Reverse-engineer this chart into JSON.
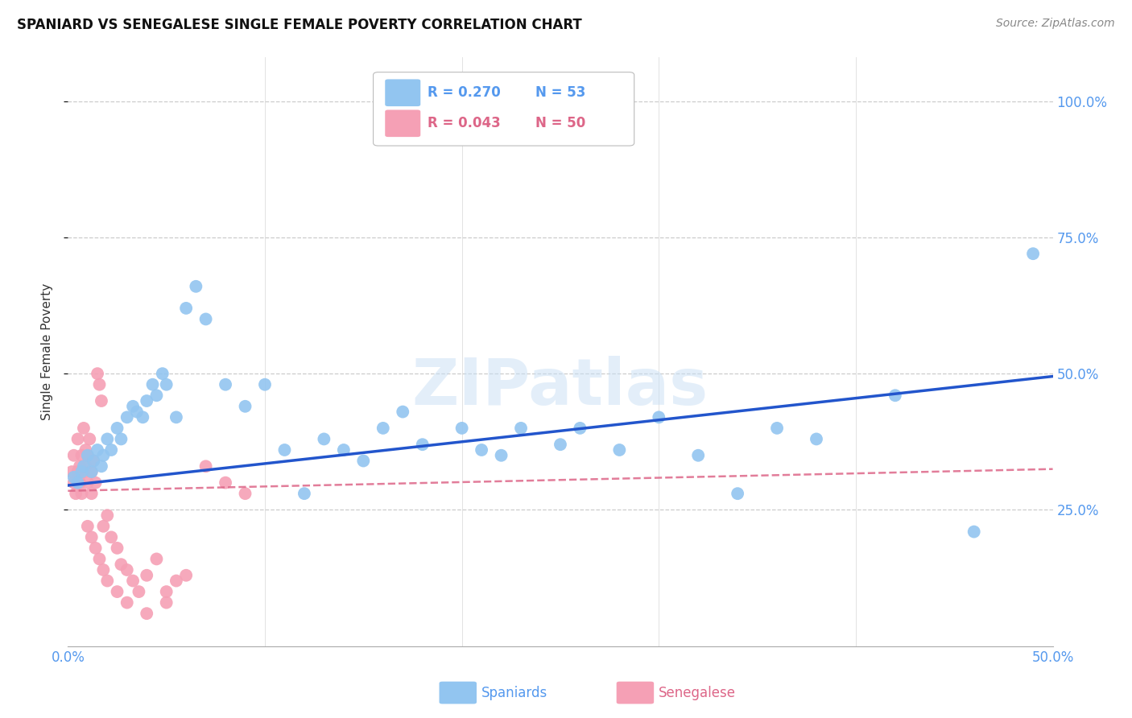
{
  "title": "SPANIARD VS SENEGALESE SINGLE FEMALE POVERTY CORRELATION CHART",
  "source": "Source: ZipAtlas.com",
  "ylabel": "Single Female Poverty",
  "ytick_values": [
    0.25,
    0.5,
    0.75,
    1.0
  ],
  "ytick_labels": [
    "25.0%",
    "50.0%",
    "75.0%",
    "100.0%"
  ],
  "xlim": [
    0.0,
    0.5
  ],
  "ylim": [
    0.0,
    1.08
  ],
  "legend_r_spaniards": "R = 0.270",
  "legend_n_spaniards": "N = 53",
  "legend_r_senegalese": "R = 0.043",
  "legend_n_senegalese": "N = 50",
  "watermark": "ZIPatlas",
  "spaniards_color": "#92c5f0",
  "senegalese_color": "#f5a0b5",
  "spaniards_line_color": "#2255cc",
  "senegalese_line_color": "#dd6688",
  "spaniards_x": [
    0.003,
    0.005,
    0.007,
    0.008,
    0.01,
    0.012,
    0.013,
    0.015,
    0.017,
    0.018,
    0.02,
    0.022,
    0.025,
    0.027,
    0.03,
    0.033,
    0.035,
    0.038,
    0.04,
    0.043,
    0.045,
    0.048,
    0.05,
    0.055,
    0.06,
    0.065,
    0.07,
    0.08,
    0.09,
    0.1,
    0.11,
    0.12,
    0.13,
    0.14,
    0.15,
    0.16,
    0.17,
    0.18,
    0.2,
    0.21,
    0.22,
    0.23,
    0.25,
    0.26,
    0.28,
    0.3,
    0.32,
    0.34,
    0.36,
    0.38,
    0.42,
    0.46,
    0.49
  ],
  "spaniards_y": [
    0.31,
    0.3,
    0.32,
    0.33,
    0.35,
    0.32,
    0.34,
    0.36,
    0.33,
    0.35,
    0.38,
    0.36,
    0.4,
    0.38,
    0.42,
    0.44,
    0.43,
    0.42,
    0.45,
    0.48,
    0.46,
    0.5,
    0.48,
    0.42,
    0.62,
    0.66,
    0.6,
    0.48,
    0.44,
    0.48,
    0.36,
    0.28,
    0.38,
    0.36,
    0.34,
    0.4,
    0.43,
    0.37,
    0.4,
    0.36,
    0.35,
    0.4,
    0.37,
    0.4,
    0.36,
    0.42,
    0.35,
    0.28,
    0.4,
    0.38,
    0.46,
    0.21,
    0.72
  ],
  "senegalese_x": [
    0.002,
    0.003,
    0.003,
    0.004,
    0.005,
    0.005,
    0.006,
    0.006,
    0.007,
    0.007,
    0.008,
    0.008,
    0.009,
    0.009,
    0.01,
    0.01,
    0.011,
    0.012,
    0.012,
    0.013,
    0.014,
    0.015,
    0.016,
    0.017,
    0.018,
    0.02,
    0.022,
    0.025,
    0.027,
    0.03,
    0.033,
    0.036,
    0.04,
    0.045,
    0.05,
    0.055,
    0.06,
    0.07,
    0.08,
    0.09,
    0.01,
    0.012,
    0.014,
    0.016,
    0.018,
    0.02,
    0.025,
    0.03,
    0.04,
    0.05
  ],
  "senegalese_y": [
    0.32,
    0.35,
    0.3,
    0.28,
    0.32,
    0.38,
    0.33,
    0.3,
    0.35,
    0.28,
    0.32,
    0.4,
    0.33,
    0.36,
    0.3,
    0.35,
    0.38,
    0.32,
    0.28,
    0.34,
    0.3,
    0.5,
    0.48,
    0.45,
    0.22,
    0.24,
    0.2,
    0.18,
    0.15,
    0.14,
    0.12,
    0.1,
    0.13,
    0.16,
    0.1,
    0.12,
    0.13,
    0.33,
    0.3,
    0.28,
    0.22,
    0.2,
    0.18,
    0.16,
    0.14,
    0.12,
    0.1,
    0.08,
    0.06,
    0.08
  ]
}
